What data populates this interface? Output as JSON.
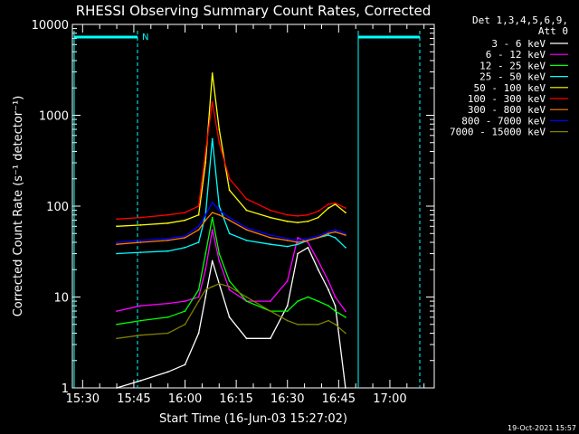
{
  "chart_data": {
    "type": "line",
    "title": "RHESSI Observing Summary Count Rates, Corrected",
    "xlabel": "Start Time (16-Jun-03 15:27:02)",
    "ylabel": "Corrected Count Rate (s⁻¹ detector⁻¹)",
    "yscale": "log",
    "xlim": [
      "15:27",
      "17:13"
    ],
    "ylim": [
      1,
      10000
    ],
    "x_ticks": [
      "15:30",
      "15:45",
      "16:00",
      "16:15",
      "16:30",
      "16:45",
      "17:00"
    ],
    "y_ticks": [
      "1",
      "10",
      "100",
      "1000",
      "10000"
    ],
    "legend_header": [
      "Det 1,3,4,5,6,9,",
      "Att 0"
    ],
    "legend_position": "right",
    "annotation_n": "N",
    "footer_date": "19-Oct-2021 15:57",
    "grid": false,
    "series": [
      {
        "name": "3 - 6 keV",
        "color": "#ffffff",
        "x": [
          "15:40",
          "15:47",
          "15:55",
          "16:00",
          "16:04",
          "16:06",
          "16:08",
          "16:10",
          "16:13",
          "16:18",
          "16:25",
          "16:30",
          "16:33",
          "16:36",
          "16:39",
          "16:42",
          "16:44",
          "16:47"
        ],
        "y": [
          1,
          1.2,
          1.5,
          1.8,
          4,
          10,
          25,
          14,
          6,
          3.5,
          3.5,
          8,
          30,
          35,
          20,
          12,
          8,
          1
        ]
      },
      {
        "name": "6 - 12 keV",
        "color": "#ff00ff",
        "x": [
          "15:40",
          "15:47",
          "15:55",
          "16:00",
          "16:04",
          "16:06",
          "16:08",
          "16:10",
          "16:13",
          "16:18",
          "16:25",
          "16:30",
          "16:33",
          "16:36",
          "16:39",
          "16:42",
          "16:44",
          "16:47"
        ],
        "y": [
          7,
          8,
          8.5,
          9,
          10,
          20,
          55,
          25,
          12,
          9,
          9,
          15,
          45,
          40,
          25,
          15,
          10,
          7
        ]
      },
      {
        "name": "12 - 25 keV",
        "color": "#00ff00",
        "x": [
          "15:40",
          "15:47",
          "15:55",
          "16:00",
          "16:04",
          "16:06",
          "16:08",
          "16:10",
          "16:13",
          "16:18",
          "16:25",
          "16:30",
          "16:33",
          "16:36",
          "16:39",
          "16:42",
          "16:44",
          "16:47"
        ],
        "y": [
          5,
          5.5,
          6,
          7,
          12,
          30,
          75,
          30,
          15,
          9,
          7,
          7,
          9,
          10,
          9,
          8,
          7,
          6
        ]
      },
      {
        "name": "25 - 50 keV",
        "color": "#00ffff",
        "x": [
          "15:40",
          "15:47",
          "15:55",
          "16:00",
          "16:04",
          "16:06",
          "16:08",
          "16:10",
          "16:13",
          "16:18",
          "16:25",
          "16:30",
          "16:33",
          "16:36",
          "16:39",
          "16:42",
          "16:44",
          "16:47"
        ],
        "y": [
          30,
          31,
          32,
          35,
          40,
          80,
          550,
          100,
          50,
          42,
          38,
          36,
          38,
          42,
          45,
          48,
          45,
          35
        ]
      },
      {
        "name": "50 - 100 keV",
        "color": "#ffff00",
        "x": [
          "15:40",
          "15:47",
          "15:55",
          "16:00",
          "16:04",
          "16:06",
          "16:08",
          "16:10",
          "16:13",
          "16:18",
          "16:25",
          "16:30",
          "16:33",
          "16:36",
          "16:39",
          "16:42",
          "16:44",
          "16:47"
        ],
        "y": [
          60,
          62,
          65,
          70,
          80,
          300,
          2900,
          700,
          150,
          90,
          75,
          68,
          66,
          68,
          75,
          95,
          105,
          85
        ]
      },
      {
        "name": "100 - 300 keV",
        "color": "#ff0000",
        "x": [
          "15:40",
          "15:47",
          "15:55",
          "16:00",
          "16:04",
          "16:06",
          "16:08",
          "16:10",
          "16:13",
          "16:18",
          "16:25",
          "16:30",
          "16:33",
          "16:36",
          "16:39",
          "16:42",
          "16:44",
          "16:47"
        ],
        "y": [
          72,
          75,
          80,
          85,
          100,
          400,
          1400,
          500,
          200,
          120,
          90,
          80,
          78,
          80,
          88,
          105,
          108,
          95
        ]
      },
      {
        "name": "300 - 800 keV",
        "color": "#ff7f00",
        "x": [
          "15:40",
          "15:47",
          "15:55",
          "16:00",
          "16:04",
          "16:06",
          "16:08",
          "16:10",
          "16:13",
          "16:18",
          "16:25",
          "16:30",
          "16:33",
          "16:36",
          "16:39",
          "16:42",
          "16:44",
          "16:47"
        ],
        "y": [
          38,
          40,
          42,
          45,
          55,
          70,
          85,
          80,
          70,
          55,
          45,
          42,
          40,
          42,
          45,
          50,
          52,
          48
        ]
      },
      {
        "name": "800 - 7000 keV",
        "color": "#0000ff",
        "x": [
          "15:40",
          "15:47",
          "15:55",
          "16:00",
          "16:04",
          "16:06",
          "16:08",
          "16:10",
          "16:13",
          "16:18",
          "16:25",
          "16:30",
          "16:33",
          "16:36",
          "16:39",
          "16:42",
          "16:44",
          "16:47"
        ],
        "y": [
          40,
          42,
          44,
          47,
          60,
          80,
          110,
          90,
          75,
          58,
          48,
          44,
          42,
          44,
          47,
          52,
          55,
          50
        ]
      },
      {
        "name": "7000 - 15000 keV",
        "color": "#7f7f00",
        "x": [
          "15:40",
          "15:47",
          "15:55",
          "16:00",
          "16:04",
          "16:06",
          "16:08",
          "16:10",
          "16:13",
          "16:18",
          "16:25",
          "16:30",
          "16:33",
          "16:36",
          "16:39",
          "16:42",
          "16:44",
          "16:47"
        ],
        "y": [
          3.5,
          3.8,
          4,
          5,
          9,
          12,
          13,
          14,
          13,
          10,
          7,
          5.5,
          5,
          5,
          5,
          5.5,
          5,
          4
        ]
      }
    ]
  },
  "colors": {
    "background": "#000000",
    "axes": "#ffffff",
    "attenuator_marks": "#00ffff"
  }
}
